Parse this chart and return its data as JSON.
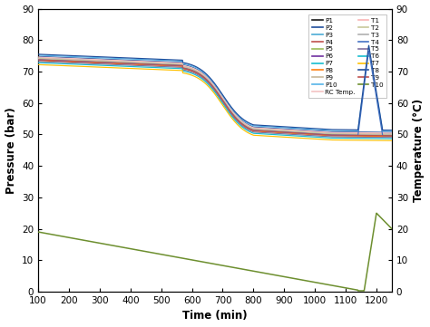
{
  "title": "",
  "xlabel": "Time (min)",
  "ylabel_left": "Pressure (bar)",
  "ylabel_right": "Temperature (°C)",
  "xlim": [
    100,
    1250
  ],
  "ylim_left": [
    0,
    90
  ],
  "ylim_right": [
    0,
    90
  ],
  "xticks": [
    100,
    200,
    300,
    400,
    500,
    600,
    700,
    800,
    900,
    1000,
    1100,
    1200
  ],
  "yticks": [
    0,
    10,
    20,
    30,
    40,
    50,
    60,
    70,
    80,
    90
  ],
  "background_color": "#ffffff",
  "p_colors": {
    "P1": "#1a1a1a",
    "P2": "#1f4e9c",
    "P3": "#4bacd6",
    "P4": "#c0504d",
    "P5": "#9bbb59",
    "P6": "#7030a0",
    "P7": "#17becf",
    "P8": "#ff7f0e",
    "P9": "#c8b89a",
    "P10": "#56b4e9"
  },
  "t_colors": {
    "RC Temp.": "#f4c2c2",
    "T1": "#f9b4b4",
    "T2": "#c8c89a",
    "T3": "#b0b0b0",
    "T4": "#4472c4",
    "T5": "#8070a0",
    "T6": "#17becf",
    "T7": "#ffc000",
    "T8": "#1f4e9c",
    "T9": "#c0504d",
    "T10": "#6d8f2f"
  },
  "p_offsets": {
    "P1": 0.0,
    "P2": 0.8,
    "P3": 0.4,
    "P4": -0.2,
    "P5": 0.1,
    "P6": -0.3,
    "P7": 0.2,
    "P8": -0.5,
    "P9": 0.05,
    "P10": 1.2
  },
  "t_offsets": {
    "RC Temp.": 0.6,
    "T1": 0.3,
    "T2": 0.15,
    "T3": -0.1,
    "T4": -0.5,
    "T5": -0.8,
    "T6": -1.2,
    "T7": -1.8,
    "T8": 1.5,
    "T9": -0.25
  }
}
